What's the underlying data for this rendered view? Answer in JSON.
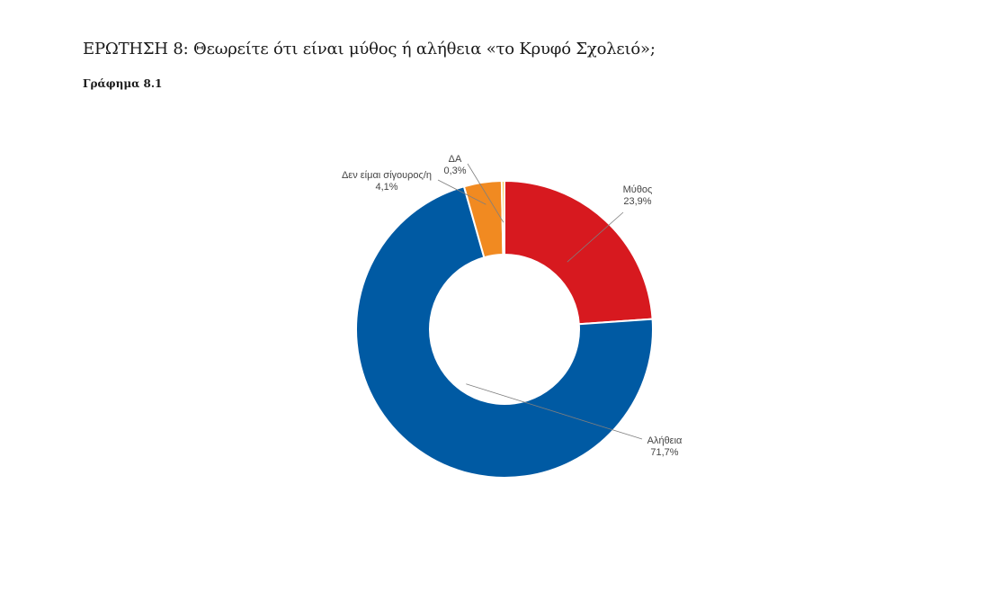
{
  "header": {
    "question": "ΕΡΩΤΗΣΗ 8: Θεωρείτε ότι είναι μύθος ή αλήθεια  «το Κρυφό Σχολειό»;",
    "chart_caption": "Γράφημα 8.1"
  },
  "chart_data": {
    "type": "pie",
    "variant": "donut",
    "legend": "none",
    "slices": [
      {
        "name": "Μύθος",
        "value": 23.9,
        "label": "23,9%",
        "color": "#d7191f"
      },
      {
        "name": "Αλήθεια",
        "value": 71.7,
        "label": "71,7%",
        "color": "#005aa3"
      },
      {
        "name": "Δεν είμαι σίγουρος/η",
        "value": 4.1,
        "label": "4,1%",
        "color": "#f18a21"
      },
      {
        "name": "ΔΑ",
        "value": 0.3,
        "label": "0,3%",
        "color": "#f2c94c"
      }
    ]
  }
}
